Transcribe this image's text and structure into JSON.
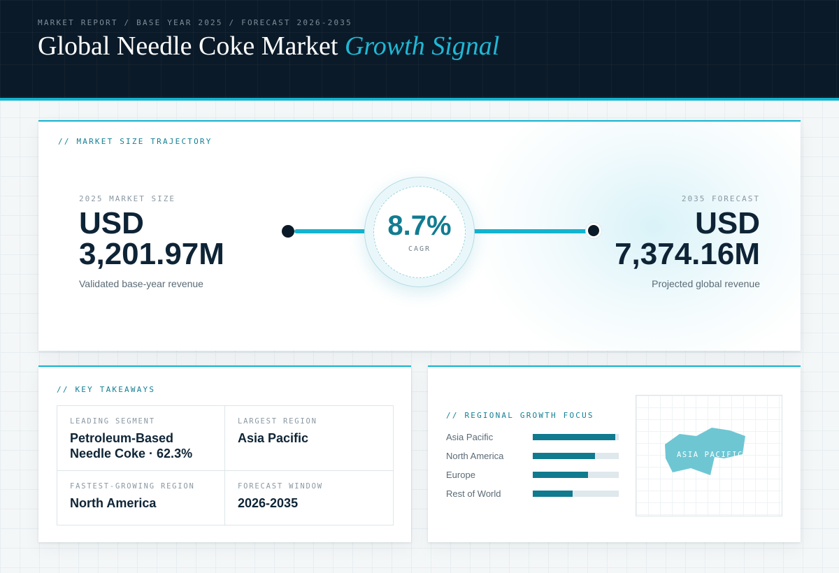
{
  "header": {
    "kicker": "MARKET REPORT / BASE YEAR 2025 / FORECAST 2026-2035",
    "title_main": "Global Needle Coke Market",
    "title_accent": "Growth Signal"
  },
  "trajectory": {
    "label": "// MARKET SIZE TRAJECTORY",
    "start": {
      "label": "2025 MARKET SIZE",
      "currency": "USD",
      "value": "3,201.97M",
      "desc": "Validated base-year revenue"
    },
    "cagr": {
      "value": "8.7%",
      "label": "CAGR"
    },
    "end": {
      "label": "2035 FORECAST",
      "currency": "USD",
      "value": "7,374.16M",
      "desc": "Projected global revenue"
    }
  },
  "takeaways": {
    "label": "// KEY TAKEAWAYS",
    "items": [
      {
        "label": "LEADING SEGMENT",
        "value": "Petroleum-Based Needle Coke · 62.3%"
      },
      {
        "label": "LARGEST REGION",
        "value": "Asia Pacific"
      },
      {
        "label": "FASTEST-GROWING REGION",
        "value": "North America"
      },
      {
        "label": "FORECAST WINDOW",
        "value": "2026-2035"
      }
    ]
  },
  "regional": {
    "label": "// REGIONAL GROWTH FOCUS",
    "bars": [
      {
        "name": "Asia Pacific",
        "level": 0.96
      },
      {
        "name": "North America",
        "level": 0.72
      },
      {
        "name": "Europe",
        "level": 0.64
      },
      {
        "name": "Rest of World",
        "level": 0.46
      }
    ],
    "map_label": "ASIA PACIFIC"
  },
  "colors": {
    "accent": "#13b4cf",
    "header_bg": "#0b1a28",
    "bar_fill": "#107a8e",
    "map_region": "#6ec6d3"
  }
}
